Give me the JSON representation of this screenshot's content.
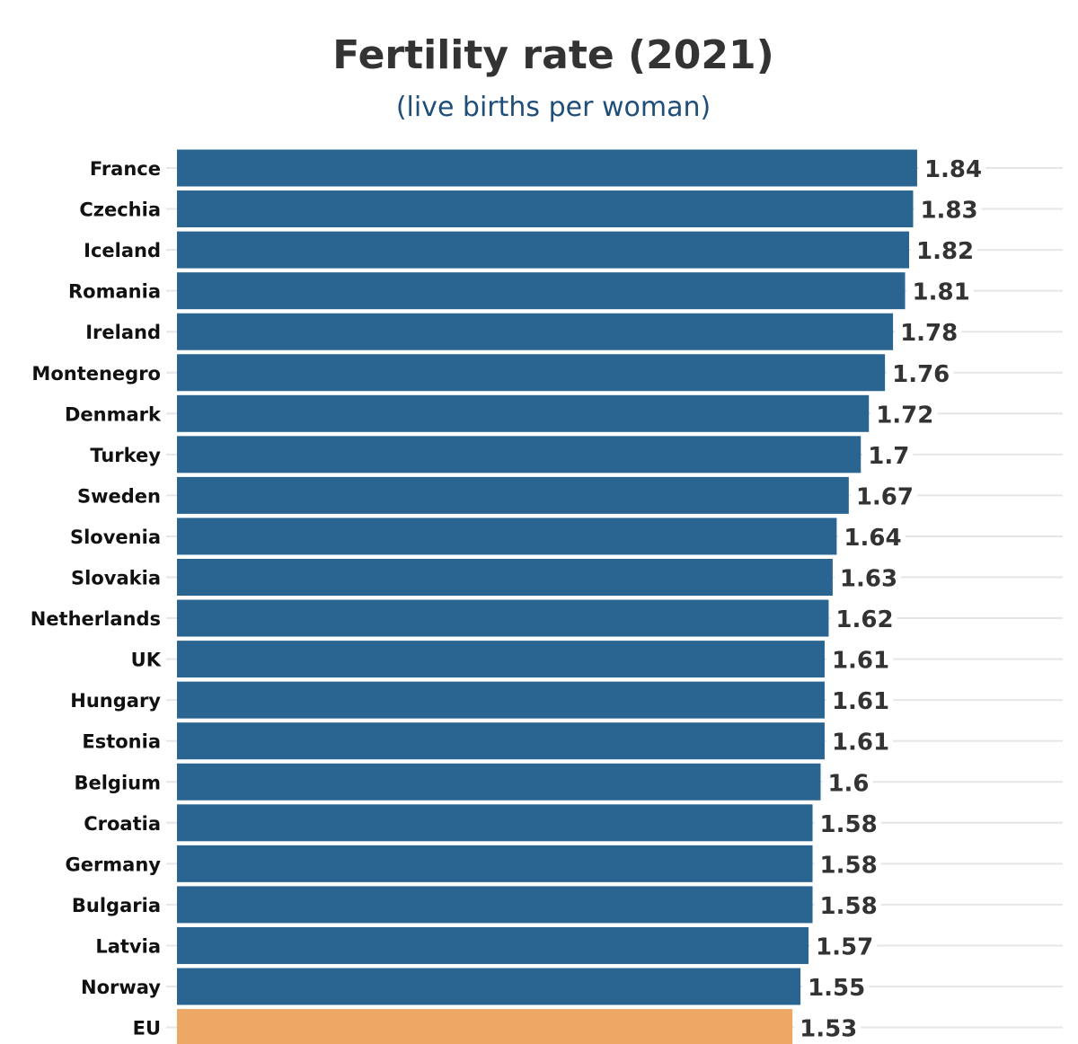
{
  "chart_data": {
    "type": "bar",
    "orientation": "horizontal",
    "title": "Fertility rate (2021)",
    "subtitle": "(live births per woman)",
    "categories": [
      "France",
      "Czechia",
      "Iceland",
      "Romania",
      "Ireland",
      "Montenegro",
      "Denmark",
      "Turkey",
      "Sweden",
      "Slovenia",
      "Slovakia",
      "Netherlands",
      "UK",
      "Hungary",
      "Estonia",
      "Belgium",
      "Croatia",
      "Germany",
      "Bulgaria",
      "Latvia",
      "Norway",
      "EU"
    ],
    "values": [
      1.84,
      1.83,
      1.82,
      1.81,
      1.78,
      1.76,
      1.72,
      1.7,
      1.67,
      1.64,
      1.63,
      1.62,
      1.61,
      1.61,
      1.61,
      1.6,
      1.58,
      1.58,
      1.58,
      1.57,
      1.55,
      1.53
    ],
    "xlim": [
      0,
      2.0
    ],
    "grid": true,
    "colors": {
      "default": "#2a6592",
      "highlight": "#eea866"
    },
    "highlight_category": "EU"
  }
}
